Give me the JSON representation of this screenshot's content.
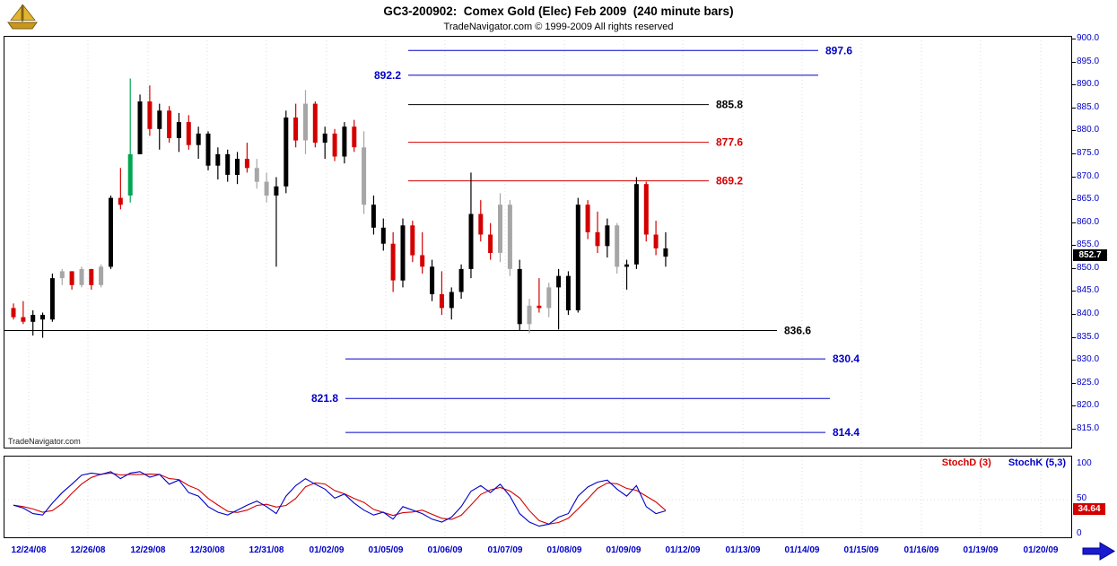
{
  "header": {
    "title": "GC3-200902:  Comex Gold (Elec) Feb 2009  (240 minute bars)",
    "copyright": "TradeNavigator.com © 1999-2009 All rights reserved",
    "logo_icon": "trade-navigator-gold-ship-icon"
  },
  "watermark": "TradeNavigator.com",
  "colors": {
    "axis_text": "#0000c8",
    "up_bar": "#000000",
    "down_bar": "#d40000",
    "neutral_bar": "#a6a6a6",
    "signal_bar": "#00a651",
    "level_blue": "#0000c8",
    "level_red": "#d40000",
    "level_black": "#000000",
    "stoch_k": "#0000c8",
    "stoch_d": "#d40000",
    "gridline": "#dcdcdc"
  },
  "price_axis": {
    "labels": [
      "900.0",
      "895.0",
      "890.0",
      "885.0",
      "880.0",
      "875.0",
      "870.0",
      "865.0",
      "860.0",
      "855.0",
      "850.0",
      "845.0",
      "840.0",
      "835.0",
      "830.0",
      "825.0",
      "820.0",
      "815.0"
    ],
    "last_price_badge": "852.7"
  },
  "stoch_panel": {
    "legend": [
      {
        "text": "StochD (3)",
        "color": "#d40000"
      },
      {
        "text": "StochK (5,3)",
        "color": "#0000c8"
      }
    ],
    "axis_labels": [
      "100",
      "50",
      "0"
    ],
    "value_badge": "34.64"
  },
  "date_axis": {
    "labels": [
      "12/24/08",
      "12/26/08",
      "12/29/08",
      "12/30/08",
      "12/31/08",
      "01/02/09",
      "01/05/09",
      "01/06/09",
      "01/07/09",
      "01/08/09",
      "01/09/09",
      "01/12/09",
      "01/13/09",
      "01/14/09",
      "01/15/09",
      "01/16/09",
      "01/19/09",
      "01/20/09"
    ]
  },
  "chart_data": [
    {
      "type": "candlestick",
      "title": "GC3-200902 Comex Gold (Elec) Feb 2009, 240 minute bars",
      "ylabel": "price",
      "ylim": [
        812,
        901.5
      ],
      "grid": "vertical-dotted",
      "last_close": 852.7,
      "price_levels": [
        {
          "value": 897.6,
          "color": "blue",
          "label_side": "right",
          "x_start": 455,
          "x_end": 912
        },
        {
          "value": 892.2,
          "color": "blue",
          "label_side": "left",
          "x_start": 455,
          "x_end": 912
        },
        {
          "value": 885.8,
          "color": "black",
          "label_side": "right",
          "x_start": 455,
          "x_end": 790
        },
        {
          "value": 877.6,
          "color": "red",
          "label_side": "right",
          "x_start": 455,
          "x_end": 790
        },
        {
          "value": 869.2,
          "color": "red",
          "label_side": "right",
          "x_start": 455,
          "x_end": 790
        },
        {
          "value": 836.6,
          "color": "black",
          "label_side": "right",
          "x_start": 0,
          "x_end": 866
        },
        {
          "value": 830.4,
          "color": "blue",
          "label_side": "right",
          "x_start": 385,
          "x_end": 920
        },
        {
          "value": 821.8,
          "color": "blue",
          "label_side": "left",
          "x_start": 385,
          "x_end": 925
        },
        {
          "value": 814.4,
          "color": "blue",
          "label_side": "right",
          "x_start": 385,
          "x_end": 920
        }
      ],
      "date_ticks_x": [
        32,
        98,
        165,
        231,
        297,
        364,
        430,
        496,
        563,
        629,
        695,
        761,
        828,
        894,
        960,
        1027,
        1093,
        1160
      ],
      "bars_ohlc_color": [
        [
          841.5,
          842.5,
          839.0,
          839.5,
          "red"
        ],
        [
          839.5,
          843.0,
          838.0,
          838.5,
          "red"
        ],
        [
          838.5,
          841.0,
          835.5,
          840.0,
          "black"
        ],
        [
          840.0,
          840.5,
          835.0,
          839.0,
          "black"
        ],
        [
          839.0,
          849.0,
          838.5,
          848.0,
          "black"
        ],
        [
          848.0,
          850.0,
          846.5,
          849.5,
          "gray"
        ],
        [
          849.5,
          849.5,
          845.5,
          846.5,
          "red"
        ],
        [
          846.5,
          850.5,
          846.0,
          850.0,
          "gray"
        ],
        [
          850.0,
          850.0,
          845.5,
          846.5,
          "red"
        ],
        [
          846.5,
          851.0,
          846.0,
          850.5,
          "gray"
        ],
        [
          850.5,
          866.0,
          850.0,
          865.5,
          "black"
        ],
        [
          865.5,
          872.0,
          863.0,
          864.0,
          "red"
        ],
        [
          866.0,
          891.5,
          864.5,
          875.0,
          "green"
        ],
        [
          875.0,
          888.0,
          875.0,
          886.5,
          "black"
        ],
        [
          886.5,
          890.0,
          879.0,
          880.5,
          "red"
        ],
        [
          880.5,
          886.0,
          876.0,
          884.5,
          "black"
        ],
        [
          884.5,
          885.5,
          877.5,
          878.5,
          "red"
        ],
        [
          878.5,
          884.0,
          875.5,
          882.0,
          "black"
        ],
        [
          882.0,
          883.5,
          876.0,
          877.0,
          "red"
        ],
        [
          877.0,
          881.0,
          874.0,
          879.5,
          "black"
        ],
        [
          879.5,
          880.0,
          871.5,
          872.5,
          "black"
        ],
        [
          872.5,
          876.5,
          869.5,
          875.0,
          "black"
        ],
        [
          875.0,
          876.0,
          869.0,
          870.5,
          "black"
        ],
        [
          870.5,
          875.5,
          868.5,
          874.0,
          "black"
        ],
        [
          874.0,
          877.5,
          871.0,
          872.0,
          "red"
        ],
        [
          872.0,
          874.0,
          867.5,
          869.0,
          "gray"
        ],
        [
          869.0,
          871.0,
          864.5,
          866.0,
          "gray"
        ],
        [
          866.0,
          870.0,
          850.5,
          868.0,
          "black"
        ],
        [
          868.0,
          884.5,
          866.5,
          883.0,
          "black"
        ],
        [
          883.0,
          886.0,
          876.5,
          878.0,
          "red"
        ],
        [
          878.0,
          889.0,
          875.0,
          886.0,
          "gray"
        ],
        [
          886.0,
          886.5,
          876.5,
          877.5,
          "red"
        ],
        [
          877.5,
          881.0,
          874.0,
          879.5,
          "black"
        ],
        [
          879.5,
          880.5,
          873.5,
          874.5,
          "red"
        ],
        [
          874.5,
          882.0,
          873.0,
          881.0,
          "black"
        ],
        [
          881.0,
          882.5,
          875.5,
          876.5,
          "red"
        ],
        [
          876.5,
          880.0,
          862.0,
          864.0,
          "gray"
        ],
        [
          864.0,
          866.0,
          857.5,
          859.0,
          "black"
        ],
        [
          859.0,
          861.0,
          854.0,
          855.5,
          "black"
        ],
        [
          855.5,
          858.0,
          845.0,
          847.5,
          "red"
        ],
        [
          847.5,
          861.0,
          846.0,
          859.5,
          "black"
        ],
        [
          859.5,
          860.5,
          851.5,
          853.0,
          "red"
        ],
        [
          853.0,
          858.0,
          849.0,
          850.5,
          "red"
        ],
        [
          850.5,
          852.0,
          843.0,
          844.5,
          "black"
        ],
        [
          844.5,
          849.5,
          840.0,
          841.5,
          "red"
        ],
        [
          841.5,
          846.0,
          839.0,
          845.0,
          "black"
        ],
        [
          845.0,
          851.0,
          843.5,
          850.0,
          "black"
        ],
        [
          850.0,
          871.0,
          848.0,
          862.0,
          "black"
        ],
        [
          862.0,
          865.0,
          856.0,
          857.5,
          "red"
        ],
        [
          857.5,
          860.0,
          852.0,
          853.5,
          "red"
        ],
        [
          853.5,
          866.5,
          851.5,
          864.0,
          "gray"
        ],
        [
          864.0,
          865.0,
          848.5,
          850.0,
          "gray"
        ],
        [
          850.0,
          852.0,
          836.5,
          838.0,
          "black"
        ],
        [
          838.0,
          843.5,
          836.0,
          842.0,
          "gray"
        ],
        [
          842.0,
          848.0,
          840.5,
          841.5,
          "red"
        ],
        [
          841.5,
          847.0,
          839.5,
          846.0,
          "gray"
        ],
        [
          846.0,
          850.0,
          836.8,
          848.5,
          "black"
        ],
        [
          848.5,
          849.5,
          840.0,
          841.0,
          "black"
        ],
        [
          841.0,
          865.5,
          840.5,
          864.0,
          "black"
        ],
        [
          864.0,
          865.0,
          856.5,
          858.0,
          "red"
        ],
        [
          858.0,
          862.5,
          853.5,
          855.0,
          "red"
        ],
        [
          855.0,
          861.0,
          852.5,
          859.5,
          "black"
        ],
        [
          859.5,
          860.0,
          849.0,
          850.5,
          "gray"
        ],
        [
          850.5,
          852.0,
          845.5,
          851.0,
          "black"
        ],
        [
          851.0,
          870.0,
          850.0,
          868.5,
          "black"
        ],
        [
          868.5,
          869.0,
          856.0,
          857.5,
          "red"
        ],
        [
          857.5,
          860.5,
          853.0,
          854.5,
          "red"
        ],
        [
          854.5,
          858.0,
          850.5,
          852.7,
          "black"
        ]
      ]
    },
    {
      "type": "line",
      "title": "Stochastics",
      "ylim": [
        0,
        100
      ],
      "legend_position": "top-right",
      "series": [
        {
          "name": "StochD (3)",
          "color": "#d40000",
          "values": [
            42,
            40,
            36.7,
            32,
            34.3,
            44.3,
            59,
            72.3,
            81.7,
            86.3,
            88,
            85.3,
            86,
            86,
            86.7,
            86,
            80,
            78.7,
            70,
            64.3,
            51.7,
            42.3,
            33.3,
            31.7,
            35,
            41.7,
            43.3,
            39.3,
            41.7,
            51.7,
            68.3,
            74,
            72.3,
            63,
            58.3,
            51.7,
            46,
            36,
            31.7,
            27.3,
            31.3,
            32.3,
            35,
            29,
            23.3,
            21.7,
            27.7,
            42.3,
            57.3,
            64,
            67.3,
            62.3,
            52.3,
            34.3,
            20,
            15,
            17.3,
            23.3,
            36.7,
            51,
            66,
            73.7,
            72.7,
            66,
            63.3,
            55,
            46.7,
            34.7
          ]
        },
        {
          "name": "StochK (5,3)",
          "color": "#0000c8",
          "values": [
            42,
            38,
            30,
            28,
            45,
            60,
            72,
            85,
            88,
            86,
            90,
            80,
            88,
            90,
            82,
            86,
            72,
            78,
            60,
            55,
            40,
            32,
            28,
            35,
            42,
            48,
            40,
            30,
            55,
            70,
            80,
            72,
            65,
            52,
            58,
            45,
            35,
            28,
            32,
            22,
            40,
            35,
            30,
            22,
            18,
            25,
            40,
            62,
            70,
            60,
            72,
            55,
            30,
            18,
            12,
            15,
            25,
            30,
            55,
            68,
            75,
            78,
            65,
            55,
            70,
            40,
            30,
            34
          ]
        }
      ],
      "last_d": 34.64
    }
  ]
}
